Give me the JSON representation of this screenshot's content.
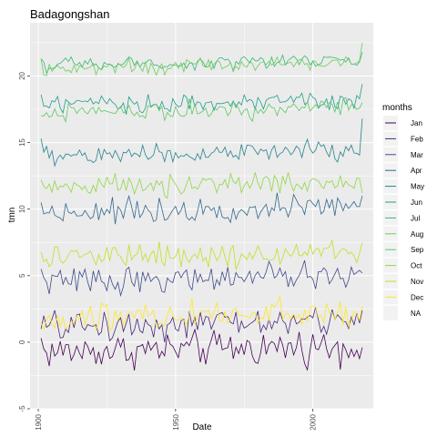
{
  "chart_data": {
    "type": "line",
    "title": "Badagongshan",
    "xlabel": "Date",
    "ylabel": "tmn",
    "xlim": [
      1897,
      2022
    ],
    "ylim": [
      -5,
      24
    ],
    "x_ticks": [
      "1900",
      "1950",
      "2000"
    ],
    "y_ticks": [
      "-5",
      "0",
      "5",
      "10",
      "15",
      "20"
    ],
    "grid": true,
    "legend": {
      "title": "months",
      "placement": "right"
    },
    "x_range": [
      1901,
      2018
    ],
    "series": [
      {
        "name": "Jan",
        "color": "#440154",
        "mean": -0.5,
        "amplitude": 1.5,
        "endpoints": [
          0.3,
          -0.4
        ],
        "min": -3.8,
        "max": 2.6
      },
      {
        "name": "Feb",
        "color": "#482878",
        "mean": 1.4,
        "amplitude": 1.3,
        "endpoints": [
          1.0,
          2.4
        ],
        "min": -0.5,
        "max": 3.3
      },
      {
        "name": "Mar",
        "color": "#3E4A89",
        "mean": 4.8,
        "amplitude": 1.1,
        "endpoints": [
          5.5,
          5.2
        ],
        "min": 2.5,
        "max": 6.8
      },
      {
        "name": "Apr",
        "color": "#31688E",
        "mean": 10.0,
        "amplitude": 1.0,
        "endpoints": [
          10.5,
          11.0
        ],
        "min": 8.3,
        "max": 12.3
      },
      {
        "name": "May",
        "color": "#26828E",
        "mean": 14.2,
        "amplitude": 0.9,
        "endpoints": [
          15.3,
          16.8
        ],
        "min": 12.3,
        "max": 16.8
      },
      {
        "name": "Jun",
        "color": "#1F9E89",
        "mean": 18.0,
        "amplitude": 0.8,
        "endpoints": [
          18.6,
          19.4
        ],
        "min": 16.2,
        "max": 20.0
      },
      {
        "name": "Jul",
        "color": "#35B779",
        "mean": 21.0,
        "amplitude": 0.6,
        "endpoints": [
          21.3,
          21.8
        ],
        "min": 19.8,
        "max": 22.8
      },
      {
        "name": "Aug",
        "color": "#6DCD59",
        "mean": 20.8,
        "amplitude": 0.6,
        "endpoints": [
          21.3,
          22.5
        ],
        "min": 19.5,
        "max": 22.8
      },
      {
        "name": "Sep",
        "color": "#5DC863",
        "mean": 17.5,
        "amplitude": 0.8,
        "endpoints": [
          17.0,
          18.0
        ],
        "min": 15.8,
        "max": 19.6
      },
      {
        "name": "Oct",
        "color": "#8FD744",
        "mean": 11.8,
        "amplitude": 0.9,
        "endpoints": [
          12.2,
          11.2
        ],
        "min": 10.0,
        "max": 14.0
      },
      {
        "name": "Nov",
        "color": "#C2DF23",
        "mean": 6.5,
        "amplitude": 1.0,
        "endpoints": [
          6.8,
          7.5
        ],
        "min": 4.5,
        "max": 9.5
      },
      {
        "name": "Dec",
        "color": "#FDE725",
        "mean": 2.0,
        "amplitude": 1.3,
        "endpoints": [
          1.5,
          2.7
        ],
        "min": -0.8,
        "max": 4.5
      },
      {
        "name": "NA",
        "color": "#F2F2F2"
      }
    ]
  }
}
